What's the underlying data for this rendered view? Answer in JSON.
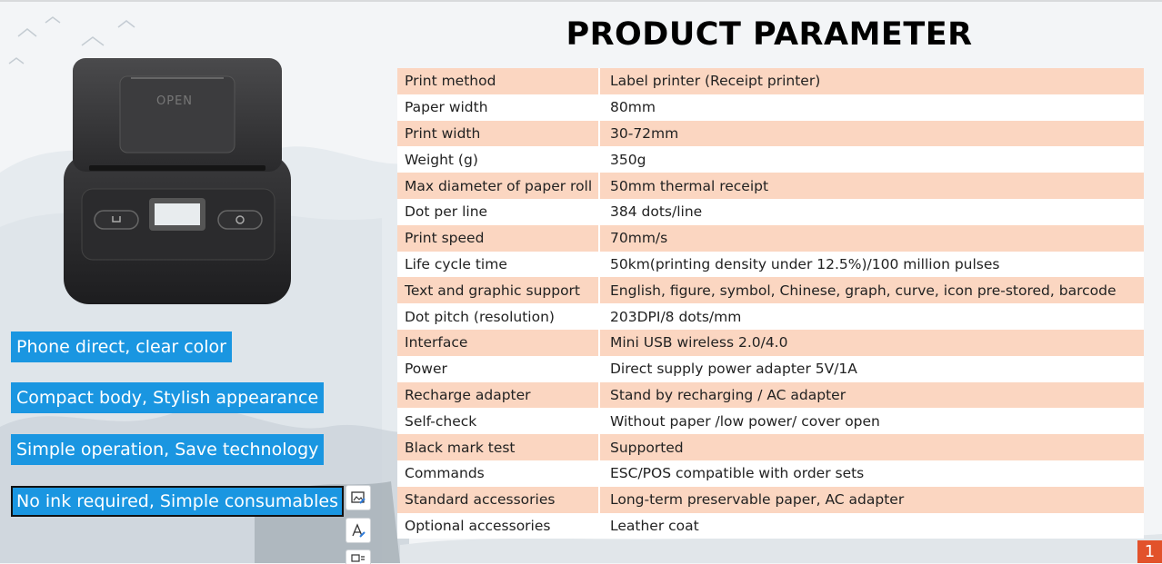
{
  "title": "PRODUCT PARAMETER",
  "printer": {
    "open_label": "OPEN"
  },
  "features": [
    {
      "label": "Phone direct, clear color"
    },
    {
      "label": "Compact body, Stylish appearance"
    },
    {
      "label": "Simple operation, Save technology"
    },
    {
      "label": "No ink required, Simple consumables"
    }
  ],
  "toolbar_icons": [
    "image-edit-icon",
    "text-style-icon",
    "layout-icon"
  ],
  "parameters": [
    {
      "name": "Print method",
      "value": "Label printer (Receipt printer)"
    },
    {
      "name": "Paper width",
      "value": "80mm"
    },
    {
      "name": "Print width",
      "value": "30-72mm"
    },
    {
      "name": "Weight (g)",
      "value": "350g"
    },
    {
      "name": "Max diameter of paper roll",
      "value": "50mm thermal receipt"
    },
    {
      "name": "Dot per line",
      "value": "384 dots/line"
    },
    {
      "name": "Print speed",
      "value": "70mm/s"
    },
    {
      "name": "Life cycle time",
      "value": "50km(printing density under 12.5%)/100 million pulses"
    },
    {
      "name": "Text and graphic support",
      "value": "English, figure, symbol, Chinese, graph, curve, icon pre-stored, barcode"
    },
    {
      "name": "Dot pitch (resolution)",
      "value": "203DPI/8 dots/mm"
    },
    {
      "name": "Interface",
      "value": "Mini USB wireless 2.0/4.0"
    },
    {
      "name": "Power",
      "value": "Direct supply power adapter 5V/1A"
    },
    {
      "name": "Recharge adapter",
      "value": "Stand by recharging / AC adapter"
    },
    {
      "name": "Self-check",
      "value": "Without paper /low power/ cover open"
    },
    {
      "name": "Black mark test",
      "value": "Supported"
    },
    {
      "name": "Commands",
      "value": "ESC/POS compatible with order sets"
    },
    {
      "name": "Standard accessories",
      "value": "Long-term preservable paper, AC adapter"
    },
    {
      "name": "Optional accessories",
      "value": "Leather coat"
    }
  ],
  "page_number": "1",
  "colors": {
    "feature_bg": "#1a96e1",
    "row_highlight": "#fbd6c1",
    "page_badge": "#e2522b"
  }
}
